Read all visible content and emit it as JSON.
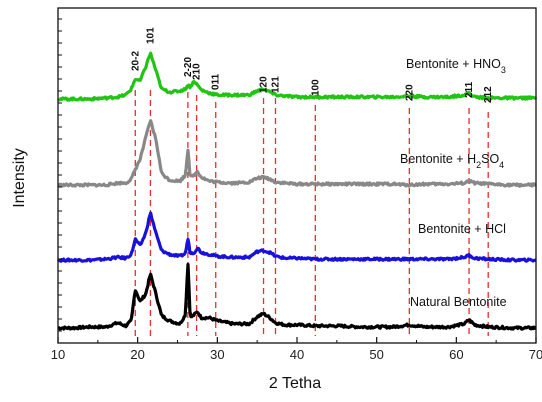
{
  "chart_data": {
    "type": "line",
    "title": "",
    "xlabel": "2 Tetha",
    "ylabel": "Intensity",
    "xlim": [
      10,
      70
    ],
    "xticks": [
      10,
      20,
      30,
      40,
      50,
      60,
      70
    ],
    "y_tick_labels": false,
    "grid": false,
    "legend": "none",
    "peak_positions": [
      19.7,
      21.6,
      26.3,
      27.4,
      29.8,
      35.8,
      37.3,
      42.3,
      54.1,
      61.6,
      64.0
    ],
    "peak_labels": [
      {
        "text": "20-2",
        "x": 19.7
      },
      {
        "text": "101",
        "x": 21.6
      },
      {
        "text": "2-20",
        "x": 26.3
      },
      {
        "text": "210",
        "x": 27.4
      },
      {
        "text": "011",
        "x": 29.8
      },
      {
        "text": "120",
        "x": 35.8
      },
      {
        "text": "121",
        "x": 37.3
      },
      {
        "text": "100",
        "x": 42.3
      },
      {
        "text": "220",
        "x": 54.1
      },
      {
        "text": "211",
        "x": 61.6
      },
      {
        "text": "212",
        "x": 64.0
      }
    ],
    "series": [
      {
        "name": "Natural Bentonite",
        "color": "#000000",
        "baseline": 0.0,
        "x": [
          10,
          12,
          14,
          16,
          17.5,
          18.5,
          19.2,
          19.7,
          20.3,
          21.0,
          21.6,
          22.3,
          23.0,
          24.0,
          25.3,
          26.0,
          26.3,
          26.6,
          27.1,
          27.5,
          28.0,
          29.0,
          30.0,
          32.0,
          34.0,
          35.0,
          35.8,
          36.6,
          37.3,
          38.5,
          40.0,
          42.3,
          45.0,
          48.0,
          52.0,
          54.1,
          56.0,
          59.0,
          61.0,
          61.6,
          62.3,
          64.0,
          67.0,
          70.0
        ],
        "y": [
          2,
          2,
          3,
          3,
          7,
          4,
          9,
          40,
          28,
          35,
          55,
          35,
          14,
          9,
          6,
          15,
          68,
          12,
          15,
          18,
          12,
          12,
          9,
          6,
          6,
          13,
          16,
          12,
          7,
          5,
          5,
          4,
          4,
          3,
          3,
          5,
          3,
          3,
          6,
          10,
          5,
          3,
          2,
          2
        ]
      },
      {
        "name": "Bentonite + HCl",
        "color": "#1a10dc",
        "baseline": 0.0,
        "x": [
          10,
          12,
          14,
          16,
          17.5,
          18.5,
          19.2,
          19.7,
          20.3,
          21.0,
          21.6,
          22.3,
          23.0,
          24.0,
          25.3,
          26.0,
          26.3,
          26.6,
          27.1,
          27.5,
          28.0,
          29.0,
          30.0,
          32.0,
          34.0,
          35.0,
          35.8,
          36.6,
          37.3,
          38.5,
          40.0,
          42.3,
          45.0,
          48.0,
          52.0,
          54.1,
          56.0,
          59.0,
          61.0,
          61.6,
          62.3,
          64.0,
          67.0,
          70.0
        ],
        "y": [
          2,
          2,
          2,
          3,
          5,
          4,
          8,
          24,
          17,
          30,
          52,
          30,
          12,
          8,
          6,
          9,
          25,
          9,
          10,
          15,
          10,
          8,
          6,
          5,
          5,
          11,
          12,
          10,
          6,
          4,
          4,
          3,
          3,
          3,
          3,
          3,
          3,
          3,
          5,
          7,
          4,
          3,
          2,
          2
        ]
      },
      {
        "name": "Bentonite + H2SO4",
        "color": "#888888",
        "baseline": 0.0,
        "x": [
          10,
          12,
          14,
          16,
          17.5,
          18.5,
          19.2,
          19.7,
          20.3,
          21.0,
          21.6,
          22.3,
          23.0,
          24.0,
          25.3,
          26.0,
          26.3,
          26.6,
          27.1,
          27.5,
          28.0,
          29.0,
          30.0,
          32.0,
          34.0,
          35.0,
          35.8,
          36.6,
          37.3,
          38.5,
          40.0,
          42.3,
          45.0,
          48.0,
          52.0,
          54.1,
          56.0,
          59.0,
          61.0,
          61.6,
          62.3,
          64.0,
          67.0,
          70.0
        ],
        "y": [
          2,
          2,
          2,
          2,
          4,
          4,
          8,
          18,
          28,
          50,
          68,
          48,
          14,
          7,
          6,
          12,
          40,
          10,
          12,
          16,
          10,
          6,
          5,
          4,
          5,
          9,
          10,
          8,
          5,
          4,
          3,
          3,
          3,
          3,
          3,
          2,
          3,
          3,
          4,
          6,
          4,
          3,
          2,
          2
        ]
      },
      {
        "name": "Bentonite + HNO3",
        "color": "#22c414",
        "baseline": 0.0,
        "x": [
          10,
          12,
          14,
          16,
          17.5,
          18.5,
          19.2,
          19.7,
          20.3,
          21.0,
          21.6,
          22.3,
          23.0,
          24.0,
          25.3,
          26.0,
          26.3,
          26.6,
          27.1,
          27.5,
          28.0,
          29.0,
          30.0,
          32.0,
          34.0,
          35.0,
          35.8,
          36.6,
          37.3,
          38.5,
          40.0,
          42.3,
          45.0,
          48.0,
          52.0,
          54.1,
          56.0,
          59.0,
          61.0,
          61.6,
          62.3,
          64.0,
          67.0,
          70.0
        ],
        "y": [
          2,
          2,
          2,
          3,
          4,
          6,
          12,
          22,
          20,
          34,
          48,
          30,
          12,
          9,
          10,
          12,
          16,
          14,
          20,
          16,
          11,
          8,
          6,
          6,
          6,
          10,
          12,
          9,
          6,
          5,
          4,
          4,
          4,
          4,
          4,
          5,
          4,
          4,
          6,
          8,
          4,
          3,
          3,
          3
        ]
      }
    ]
  }
}
